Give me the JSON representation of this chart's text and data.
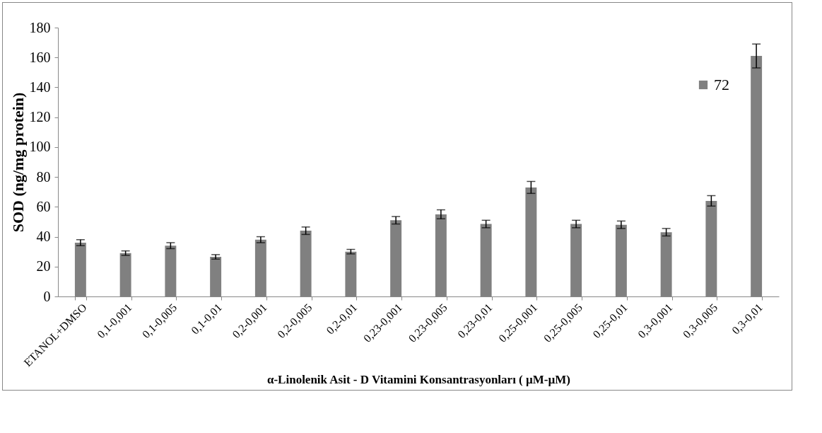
{
  "chart_data": {
    "type": "bar",
    "xlabel": "α-Linolenik Asit - D Vitamini Konsantrasyonları ( µM-µM)",
    "ylabel": "SOD (ng/mg protein)",
    "categories": [
      "ETANOL+DMSO",
      "0,1-0,001",
      "0,1-0,005",
      "0,1-0,01",
      "0,2-0,001",
      "0,2-0,005",
      "0,2-0,01",
      "0,23-0,001",
      "0,23-0,005",
      "0,23-0,01",
      "0,25-0,001",
      "0,25-0,005",
      "0,25-0,01",
      "0,3-0,001",
      "0,3-0,005",
      "0,3-0,01"
    ],
    "series": [
      {
        "name": "72",
        "color": "#808080",
        "values": [
          36,
          29,
          34,
          26.5,
          38,
          44,
          30,
          51,
          55,
          48.5,
          73,
          48.5,
          48,
          43,
          64,
          161
        ],
        "errors": [
          2,
          1.5,
          2,
          1.5,
          2,
          2.5,
          1.5,
          2.5,
          3,
          2.5,
          4,
          2.5,
          2.5,
          2.5,
          3.5,
          8
        ]
      }
    ],
    "ylim": [
      0,
      180
    ],
    "yticks": [
      0,
      20,
      40,
      60,
      80,
      100,
      120,
      140,
      160,
      180
    ],
    "grid": false,
    "legend": "top right"
  }
}
